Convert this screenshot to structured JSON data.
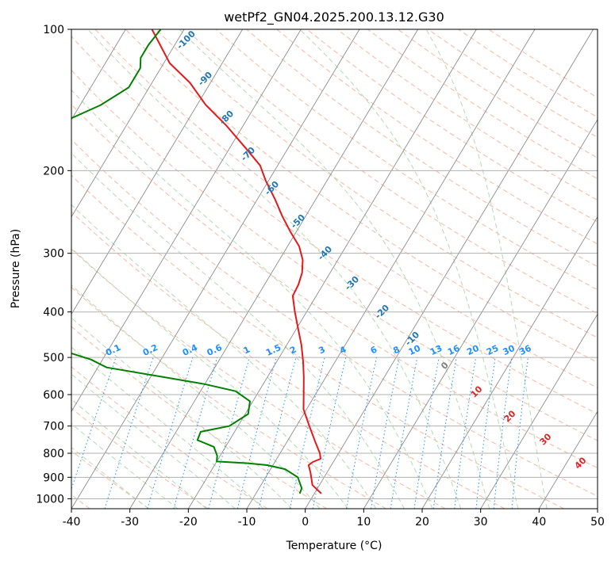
{
  "chart_data": {
    "type": "line",
    "title": "wetPf2_GN04.2025.200.13.12.G30",
    "xlabel": "Temperature (°C)",
    "ylabel": "Pressure (hPa)",
    "xlim": [
      -40,
      50
    ],
    "ylim": [
      1050,
      100
    ],
    "y_scale": "log",
    "x_ticks": [
      -40,
      -30,
      -20,
      -10,
      0,
      10,
      20,
      30,
      40,
      50
    ],
    "y_ticks": [
      1000,
      900,
      800,
      700,
      600,
      500,
      400,
      300,
      200,
      100
    ],
    "grid": "isobars and skewed isotherms on",
    "series": [
      {
        "color": "#e31a1c",
        "points": [
          [
            1.2,
            975
          ],
          [
            -1.2,
            935
          ],
          [
            -2.8,
            880
          ],
          [
            -3.9,
            848
          ],
          [
            -3.5,
            835
          ],
          [
            -2.5,
            822
          ],
          [
            -3.2,
            800
          ],
          [
            -5.0,
            760
          ],
          [
            -7.8,
            700
          ],
          [
            -10.5,
            645
          ],
          [
            -12.0,
            600
          ],
          [
            -13.8,
            550
          ],
          [
            -15.5,
            510
          ],
          [
            -17.5,
            470
          ],
          [
            -20.0,
            430
          ],
          [
            -22.0,
            400
          ],
          [
            -24.0,
            370
          ],
          [
            -24.2,
            350
          ],
          [
            -24.8,
            330
          ],
          [
            -26.0,
            310
          ],
          [
            -28.0,
            290
          ],
          [
            -31.0,
            270
          ],
          [
            -34.0,
            250
          ],
          [
            -37.0,
            230
          ],
          [
            -40.5,
            210
          ],
          [
            -43.0,
            195
          ],
          [
            -47.0,
            180
          ],
          [
            -53.0,
            160
          ],
          [
            -58.5,
            145
          ],
          [
            -63.5,
            130
          ],
          [
            -69.0,
            118
          ],
          [
            -75.5,
            100
          ]
        ]
      },
      {
        "color": "#008000",
        "points": [
          [
            -2.5,
            975
          ],
          [
            -2.7,
            950
          ],
          [
            -4.5,
            900
          ],
          [
            -7.5,
            865
          ],
          [
            -11.0,
            848
          ],
          [
            -14.5,
            840
          ],
          [
            -20.0,
            833
          ],
          [
            -20.5,
            810
          ],
          [
            -22.0,
            775
          ],
          [
            -25.5,
            750
          ],
          [
            -25.8,
            720
          ],
          [
            -21.5,
            700
          ],
          [
            -19.5,
            660
          ],
          [
            -20.5,
            620
          ],
          [
            -24.0,
            590
          ],
          [
            -30.0,
            570
          ],
          [
            -38.0,
            550
          ],
          [
            -48.5,
            525
          ],
          [
            -52.0,
            505
          ],
          [
            -56.0,
            490
          ],
          [
            -62.0,
            470
          ],
          [
            -64.0,
            450
          ],
          [
            -71.0,
            420
          ],
          [
            -74.0,
            405
          ],
          [
            -79.0,
            390
          ],
          [
            -86.0,
            375
          ],
          [
            -89.0,
            360
          ],
          [
            -90.0,
            340
          ],
          [
            -90.0,
            320
          ],
          [
            -91.0,
            300
          ],
          [
            -96.0,
            285
          ],
          [
            -97.5,
            270
          ],
          [
            -96.0,
            255
          ],
          [
            -94.5,
            245
          ],
          [
            -89.0,
            230
          ],
          [
            -86.5,
            215
          ],
          [
            -86.5,
            200
          ],
          [
            -87.0,
            190
          ],
          [
            -87.5,
            180
          ],
          [
            -85.5,
            170
          ],
          [
            -81.0,
            157
          ],
          [
            -76.5,
            145
          ],
          [
            -73.5,
            133
          ],
          [
            -73.5,
            121
          ],
          [
            -74.5,
            115
          ],
          [
            -74.5,
            108
          ],
          [
            -74.0,
            100
          ]
        ]
      }
    ],
    "dry_adiabat_labels": [
      "-100",
      "-90",
      "-80",
      "-70",
      "-60",
      "-50",
      "-40",
      "-30",
      "-20",
      "-10",
      "0",
      "10",
      "20",
      "30",
      "40"
    ],
    "mixing_ratio_labels": [
      "0.1",
      "0.2",
      "0.4",
      "0.6",
      "1",
      "1.5",
      "2",
      "3",
      "4",
      "6",
      "8",
      "10",
      "13",
      "16",
      "20",
      "25",
      "30",
      "36"
    ],
    "line_colors": {
      "isobar": "#b0b0b0",
      "isotherm": "#8c8c8c",
      "dry_adiabat": "#f8b8a0",
      "moist_adiabat": "#b3dab3",
      "mixing_ratio": "#1e90ff",
      "label_blue": "#1f77b4",
      "label_red": "#d62728",
      "label_grey": "#808080",
      "label_mixing": "#1e90ff"
    }
  }
}
